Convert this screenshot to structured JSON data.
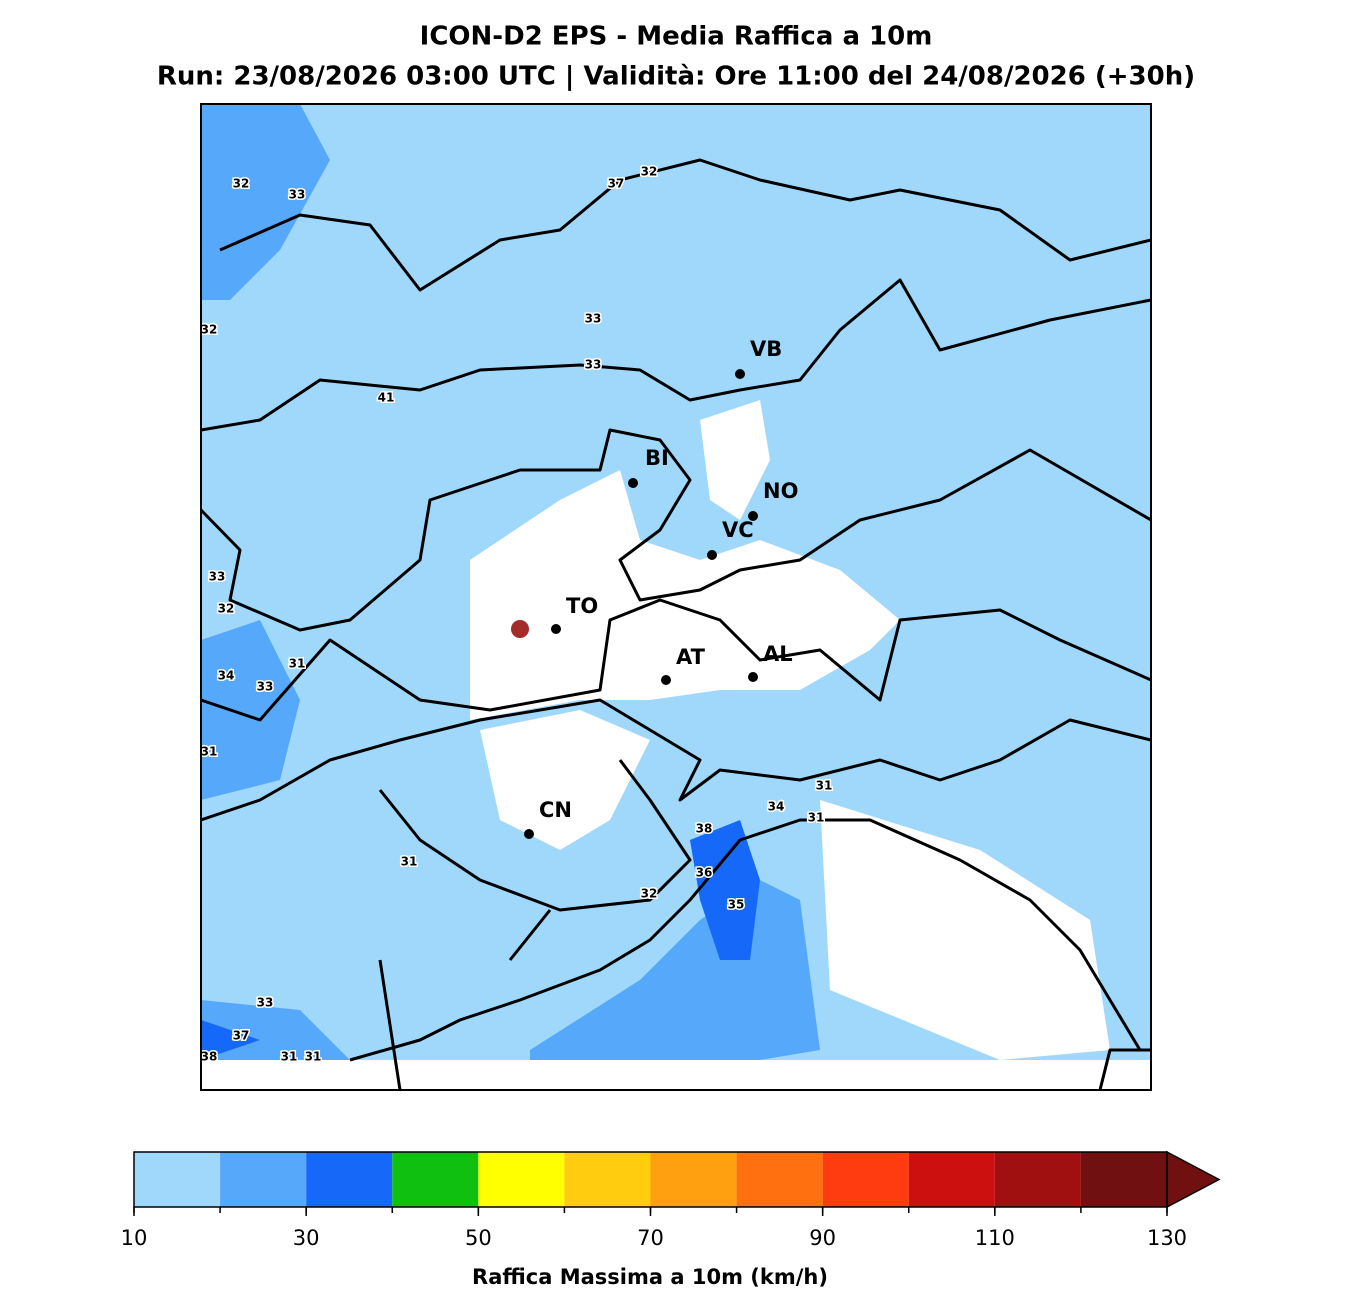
{
  "header": {
    "title": "ICON-D2 EPS - Media Raffica a 10m",
    "subtitle": "Run: 23/08/2026 03:00 UTC | Validità: Ore 11:00 del 24/08/2026 (+30h)"
  },
  "cities": [
    "VB",
    "BI",
    "NO",
    "VC",
    "TO",
    "AT",
    "AL",
    "CN"
  ],
  "contour_labels": [
    32,
    33,
    37,
    32,
    32,
    33,
    33,
    41,
    33,
    32,
    31,
    34,
    33,
    31,
    31,
    34,
    31,
    38,
    36,
    35,
    32,
    31,
    33,
    37,
    38,
    31,
    31
  ],
  "colorbar": {
    "boundaries": [
      10,
      20,
      30,
      40,
      50,
      60,
      70,
      80,
      90,
      100,
      110,
      120,
      130
    ],
    "colors": [
      "#a0d8fc",
      "#56a8fa",
      "#1668f8",
      "#10c010",
      "#ffff00",
      "#ffcc10",
      "#ffa010",
      "#ff7010",
      "#ff3c10",
      "#cc1010",
      "#a01010",
      "#701010"
    ],
    "ticks": [
      10,
      30,
      50,
      70,
      90,
      110,
      130
    ],
    "label": "Raffica Massima a 10m (km/h)"
  }
}
